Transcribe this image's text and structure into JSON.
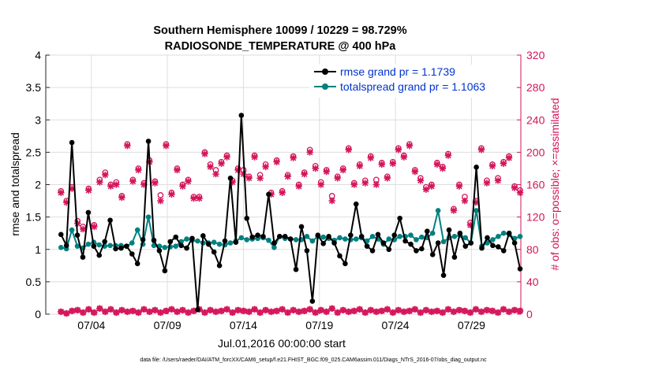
{
  "chart_data": {
    "type": "line",
    "title": [
      "Southern Hemisphere 10099 / 10229 = 98.729%",
      "RADIOSONDE_TEMPERATURE @ 400 hPa"
    ],
    "xlabel": "Jul.01,2016 00:00:00 start",
    "ylabel_left": "rmse and totalspread",
    "ylabel_right": "# of obs: o=possible; ×=assimilated",
    "footnote": "data file: /Users/raeder/DAI/ATM_forcXX/CAM6_setup/f.e21.FHIST_BGC.f09_025.CAM6assim.011/Diags_NTrS_2016-07/obs_diag_output.nc",
    "xlim": [
      0,
      31.25
    ],
    "ylim_left": [
      0,
      4
    ],
    "ylim_right": [
      0,
      320
    ],
    "x_ticks": [
      {
        "x": 3,
        "label": "07/04"
      },
      {
        "x": 8,
        "label": "07/09"
      },
      {
        "x": 13,
        "label": "07/14"
      },
      {
        "x": 18,
        "label": "07/19"
      },
      {
        "x": 23,
        "label": "07/24"
      },
      {
        "x": 28,
        "label": "07/29"
      }
    ],
    "y_ticks_left": [
      "0",
      "0.5",
      "1",
      "1.5",
      "2",
      "2.5",
      "3",
      "3.5",
      "4"
    ],
    "y_ticks_right": [
      "0",
      "40",
      "80",
      "120",
      "160",
      "200",
      "240",
      "280",
      "320"
    ],
    "series": [
      {
        "name": "rmse",
        "legend": "rmse grand pr = 1.1739",
        "color": "#000000",
        "axis": "left",
        "values": [
          1.23,
          1.06,
          2.65,
          1.22,
          0.88,
          1.57,
          1.05,
          0.91,
          1.12,
          1.45,
          1.01,
          1.02,
          1.05,
          0.93,
          0.78,
          1.15,
          2.67,
          1.14,
          0.98,
          0.67,
          1.12,
          1.19,
          1.06,
          1.02,
          1.17,
          0.07,
          1.21,
          1.08,
          0.96,
          0.75,
          1.13,
          2.1,
          1.11,
          3.07,
          1.48,
          1.19,
          1.22,
          1.2,
          1.85,
          1.1,
          1.2,
          1.2,
          1.16,
          0.69,
          1.35,
          0.98,
          0.2,
          1.22,
          1.09,
          1.2,
          1.1,
          0.9,
          0.78,
          1.22,
          1.7,
          1.2,
          1.05,
          0.98,
          1.23,
          1.1,
          1.0,
          1.22,
          1.48,
          1.13,
          1.08,
          0.98,
          1.01,
          1.28,
          0.92,
          1.1,
          0.6,
          1.3,
          0.88,
          1.25,
          1.05,
          1.1,
          2.27,
          1.02,
          1.18,
          1.06,
          1.04,
          0.98,
          1.25,
          1.1,
          0.7
        ]
      },
      {
        "name": "totalspread",
        "legend": "totalspread grand pr = 1.1063",
        "color": "#008080",
        "axis": "left",
        "values": [
          1.03,
          1.01,
          1.3,
          1.05,
          1.02,
          1.08,
          1.11,
          1.07,
          1.05,
          1.06,
          1.06,
          1.06,
          1.05,
          1.1,
          1.3,
          1.08,
          1.5,
          1.06,
          1.05,
          1.03,
          1.04,
          1.05,
          1.12,
          1.16,
          1.14,
          1.13,
          1.1,
          1.1,
          1.11,
          1.08,
          1.07,
          1.1,
          1.13,
          1.18,
          1.15,
          1.16,
          1.17,
          1.18,
          1.14,
          1.03,
          1.2,
          1.17,
          1.16,
          1.15,
          1.15,
          1.2,
          1.13,
          1.2,
          1.19,
          1.17,
          1.14,
          1.18,
          1.16,
          1.15,
          1.16,
          1.18,
          1.13,
          1.2,
          1.16,
          1.08,
          1.16,
          1.15,
          1.2,
          1.2,
          1.22,
          1.15,
          1.19,
          1.18,
          1.25,
          1.6,
          1.12,
          1.18,
          1.2,
          1.22,
          1.18,
          1.1,
          1.6,
          1.05,
          1.1,
          1.15,
          1.2,
          1.25,
          1.23,
          1.17,
          1.2
        ]
      },
      {
        "name": "obs possible",
        "marker": "o",
        "color": "#d4145a",
        "axis": "right",
        "values": [
          3,
          1,
          4,
          5,
          2,
          6,
          2,
          7,
          3,
          6,
          2,
          5,
          3,
          4,
          2,
          6,
          3,
          5,
          2,
          4,
          6,
          3,
          5,
          2,
          4,
          6,
          2,
          5,
          3,
          4,
          6,
          2,
          5,
          4,
          3,
          6,
          2,
          5,
          3,
          4,
          6,
          2,
          5,
          3,
          4,
          6,
          2,
          5,
          3,
          7,
          2,
          5,
          3,
          4,
          6,
          2,
          5,
          3,
          4,
          6,
          2,
          5,
          3,
          4,
          6,
          2,
          5,
          3,
          4,
          2,
          6,
          3,
          5,
          4,
          2,
          6,
          3,
          5,
          4,
          2,
          6,
          3,
          5,
          4
        ],
        "high": [
          152,
          140,
          157,
          115,
          108,
          155,
          110,
          166,
          175,
          160,
          163,
          146,
          210,
          166,
          180,
          162,
          190,
          164,
          147,
          210,
          150,
          180,
          160,
          166,
          145,
          145,
          200,
          185,
          178,
          188,
          196,
          165,
          180,
          178,
          170,
          196,
          172,
          185,
          150,
          190,
          152,
          172,
          195,
          160,
          175,
          203,
          183,
          163,
          178,
          146,
          170,
          180,
          205,
          162,
          185,
          165,
          195,
          166,
          187,
          170,
          188,
          205,
          196,
          210,
          178,
          168,
          157,
          160,
          187,
          182,
          198,
          130,
          160,
          145,
          113,
          140,
          205,
          165,
          185,
          168,
          188,
          195,
          158,
          153
        ]
      },
      {
        "name": "obs assimilated",
        "marker": "x",
        "color": "#d4145a",
        "axis": "right",
        "values": [
          3,
          1,
          4,
          5,
          2,
          6,
          2,
          7,
          3,
          6,
          2,
          5,
          3,
          4,
          2,
          6,
          3,
          5,
          2,
          4,
          6,
          3,
          5,
          2,
          4,
          6,
          2,
          5,
          3,
          4,
          6,
          2,
          5,
          4,
          3,
          6,
          2,
          5,
          3,
          4,
          6,
          2,
          5,
          3,
          4,
          6,
          2,
          5,
          3,
          7,
          2,
          5,
          3,
          4,
          6,
          2,
          5,
          3,
          4,
          6,
          2,
          5,
          3,
          4,
          6,
          2,
          5,
          3,
          4,
          2,
          6,
          3,
          5,
          4,
          2,
          6,
          3,
          5,
          4,
          2,
          6,
          3,
          5,
          4
        ],
        "high": [
          150,
          138,
          155,
          112,
          105,
          153,
          108,
          163,
          172,
          158,
          160,
          144,
          208,
          164,
          178,
          160,
          188,
          162,
          140,
          208,
          148,
          178,
          158,
          164,
          143,
          143,
          198,
          182,
          173,
          186,
          194,
          163,
          178,
          173,
          168,
          194,
          168,
          182,
          148,
          188,
          150,
          170,
          193,
          158,
          173,
          200,
          180,
          160,
          176,
          140,
          168,
          178,
          203,
          160,
          183,
          162,
          193,
          160,
          185,
          168,
          186,
          203,
          194,
          208,
          176,
          165,
          154,
          158,
          185,
          180,
          196,
          128,
          158,
          140,
          110,
          138,
          203,
          162,
          183,
          165,
          186,
          193,
          156,
          150
        ]
      }
    ]
  }
}
